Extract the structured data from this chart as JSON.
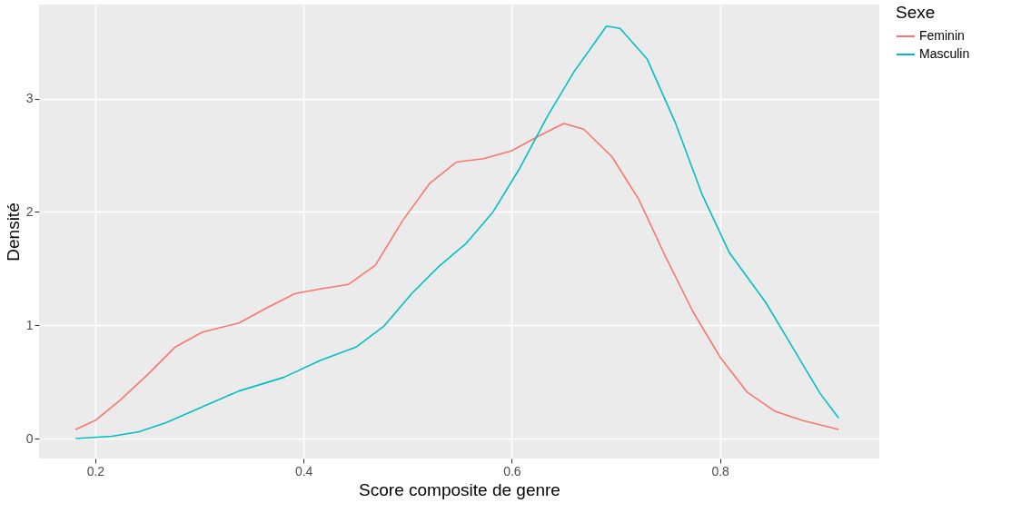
{
  "chart_data": {
    "type": "line",
    "xlabel": "Score composite de genre",
    "ylabel": "Densité",
    "legend_title": "Sexe",
    "xlim": [
      0.146,
      0.953
    ],
    "xticks": [
      0.2,
      0.4,
      0.6,
      0.8
    ],
    "ylim": [
      -0.176,
      3.83
    ],
    "yticks": [
      0,
      1,
      2,
      3
    ],
    "grid": true,
    "legend": "right",
    "marker": "none",
    "line_style": "solid",
    "series": [
      {
        "name": "Feminin",
        "color": "#f8766d",
        "x": [
          0.181,
          0.2,
          0.224,
          0.251,
          0.277,
          0.303,
          0.338,
          0.364,
          0.392,
          0.416,
          0.443,
          0.469,
          0.495,
          0.521,
          0.547,
          0.573,
          0.6,
          0.626,
          0.65,
          0.669,
          0.696,
          0.722,
          0.748,
          0.774,
          0.8,
          0.826,
          0.853,
          0.879,
          0.914
        ],
        "values": [
          0.08,
          0.16,
          0.34,
          0.57,
          0.81,
          0.94,
          1.02,
          1.15,
          1.28,
          1.32,
          1.36,
          1.53,
          1.92,
          2.25,
          2.44,
          2.47,
          2.54,
          2.67,
          2.78,
          2.73,
          2.49,
          2.11,
          1.6,
          1.12,
          0.72,
          0.41,
          0.24,
          0.16,
          0.08
        ]
      },
      {
        "name": "Masculin",
        "color": "#00bfc4",
        "x": [
          0.181,
          0.216,
          0.242,
          0.268,
          0.303,
          0.338,
          0.381,
          0.416,
          0.451,
          0.477,
          0.504,
          0.53,
          0.556,
          0.582,
          0.608,
          0.634,
          0.66,
          0.691,
          0.704,
          0.73,
          0.757,
          0.783,
          0.809,
          0.844,
          0.87,
          0.896,
          0.914
        ],
        "values": [
          0.0,
          0.02,
          0.06,
          0.14,
          0.28,
          0.42,
          0.54,
          0.69,
          0.81,
          0.99,
          1.28,
          1.52,
          1.72,
          2.0,
          2.39,
          2.84,
          3.24,
          3.64,
          3.62,
          3.35,
          2.79,
          2.15,
          1.64,
          1.2,
          0.8,
          0.4,
          0.18
        ]
      }
    ]
  }
}
